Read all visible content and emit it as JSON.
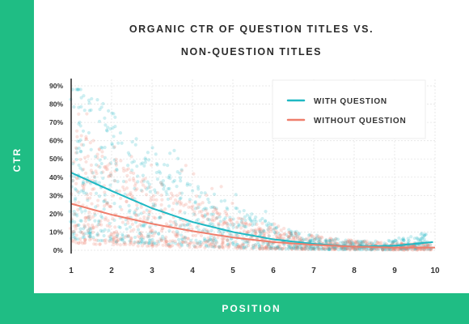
{
  "chart_data": {
    "type": "scatter",
    "title_lines": [
      "ORGANIC CTR OF QUESTION TITLES VS.",
      "NON-QUESTION TITLES"
    ],
    "xlabel": "POSITION",
    "ylabel": "CTR",
    "xlim": [
      1,
      10
    ],
    "ylim": [
      0,
      90
    ],
    "x_ticks": [
      "1",
      "2",
      "3",
      "4",
      "5",
      "6",
      "7",
      "8",
      "9",
      "10"
    ],
    "y_ticks": [
      "0%",
      "10%",
      "20%",
      "30%",
      "40%",
      "50%",
      "60%",
      "70%",
      "80%",
      "90%"
    ],
    "y_tick_values": [
      0,
      10,
      20,
      30,
      40,
      50,
      60,
      70,
      80,
      90
    ],
    "legend_position": "top-right",
    "grid": true,
    "series": [
      {
        "name": "WITH QUESTION",
        "color": "#1fb8c3",
        "trend_x": [
          1,
          2,
          3,
          4,
          5,
          6,
          7,
          8,
          9,
          9.95
        ],
        "trend_y": [
          42.5,
          32.5,
          23,
          15.5,
          10,
          6,
          3.5,
          2,
          2.5,
          4.5
        ]
      },
      {
        "name": "WITHOUT QUESTION",
        "color": "#ef7e6c",
        "trend_x": [
          1,
          2,
          3,
          4,
          5,
          6,
          7,
          8,
          9,
          10
        ],
        "trend_y": [
          25.5,
          19.5,
          14.5,
          10.5,
          7,
          4.5,
          3,
          2,
          1.5,
          1.5
        ]
      }
    ]
  }
}
